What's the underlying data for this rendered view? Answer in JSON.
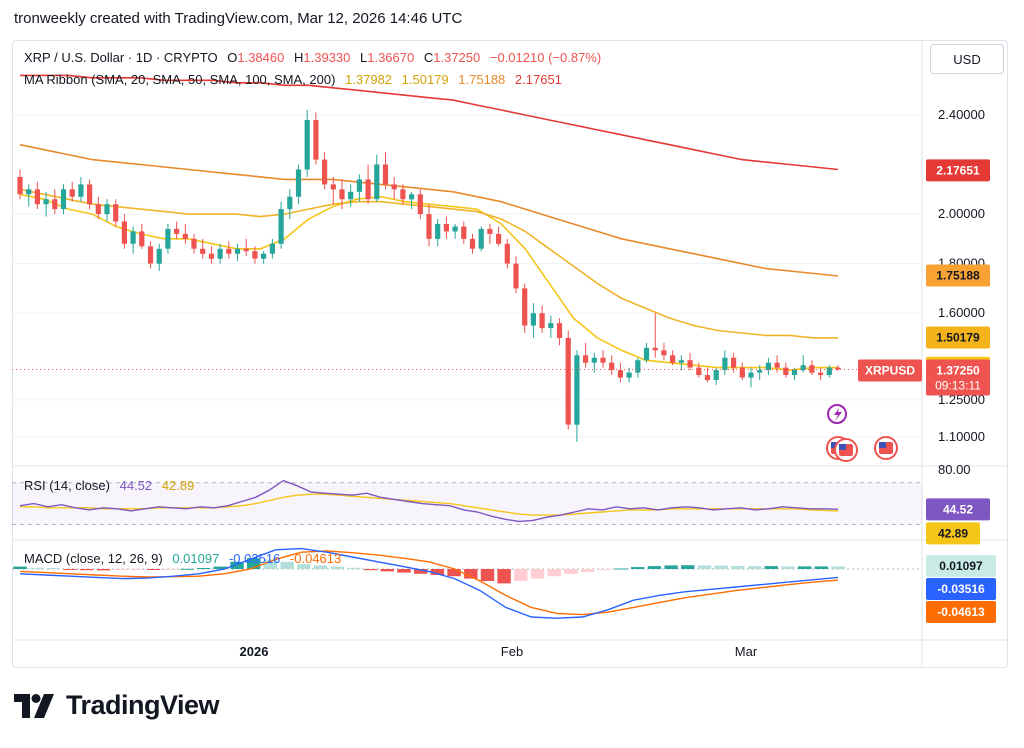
{
  "header": {
    "text": "tronweekly created with TradingView.com, Mar 12, 2026 14:46 UTC"
  },
  "currency_button": "USD",
  "legend": {
    "symbol": "XRP / U.S. Dollar · 1D · CRYPTO",
    "o_label": "O",
    "o": "1.38460",
    "h_label": "H",
    "h": "1.39330",
    "l_label": "L",
    "l": "1.36670",
    "c_label": "C",
    "c": "1.37250",
    "change": "−0.01210 (−0.87%)",
    "ma_title": "MA Ribbon (SMA, 20, SMA, 50, SMA, 100, SMA, 200)",
    "ma20": "1.37982",
    "ma50": "1.50179",
    "ma100": "1.75188",
    "ma200": "2.17651",
    "rsi_title": "RSI (14, close)",
    "rsi": "44.52",
    "rsi_ma": "42.89",
    "macd_title": "MACD (close, 12, 26, 9)",
    "macd_hist": "0.01097",
    "macd": "-0.03516",
    "macd_signal": "-0.04613"
  },
  "colors": {
    "up": "#26a69a",
    "down": "#ef5350",
    "ma20": "#f5c518",
    "ma50": "#f0b429",
    "ma100": "#e8892b",
    "ma200": "#e53935",
    "rsi": "#7e57c2",
    "rsi_ma": "#f5c518",
    "macd": "#2962ff",
    "macd_signal": "#ff6d00",
    "text": "#131722"
  },
  "price_axis": {
    "ticks": [
      "2.40000",
      "2.00000",
      "1.80000",
      "1.60000",
      "1.25000",
      "1.10000"
    ],
    "badges": {
      "ma200": "2.17651",
      "ma100": "1.75188",
      "ma50": "1.50179",
      "ma20": "1.37982",
      "symbol": "XRPUSD",
      "price": "1.37250",
      "countdown": "09:13:11"
    }
  },
  "rsi_axis": {
    "top_tick": "80.00",
    "rsi_badge": "44.52",
    "rsi_ma_badge": "42.89"
  },
  "macd_axis": {
    "hist_badge": "0.01097",
    "macd_badge": "-0.03516",
    "signal_badge": "-0.04613"
  },
  "time_axis": [
    "2026",
    "Feb",
    "Mar"
  ],
  "logo_text": "TradingView",
  "chart_data": {
    "type": "candlestick",
    "x_ticks": [
      "2026",
      "Feb",
      "Mar"
    ],
    "y_ticks": [
      2.4,
      2.0,
      1.8,
      1.6,
      1.25,
      1.1
    ],
    "ylim": [
      1.05,
      2.58
    ],
    "candles": [
      [
        2.15,
        2.18,
        2.06,
        2.08
      ],
      [
        2.08,
        2.12,
        2.03,
        2.1
      ],
      [
        2.1,
        2.13,
        2.02,
        2.04
      ],
      [
        2.04,
        2.09,
        1.99,
        2.06
      ],
      [
        2.06,
        2.1,
        2.0,
        2.02
      ],
      [
        2.02,
        2.12,
        2.0,
        2.1
      ],
      [
        2.1,
        2.13,
        2.05,
        2.07
      ],
      [
        2.07,
        2.15,
        2.05,
        2.12
      ],
      [
        2.12,
        2.14,
        2.02,
        2.04
      ],
      [
        2.04,
        2.07,
        1.98,
        2.0
      ],
      [
        2.0,
        2.06,
        1.97,
        2.04
      ],
      [
        2.04,
        2.06,
        1.95,
        1.97
      ],
      [
        1.97,
        2.0,
        1.86,
        1.88
      ],
      [
        1.88,
        1.95,
        1.84,
        1.93
      ],
      [
        1.93,
        1.96,
        1.86,
        1.87
      ],
      [
        1.87,
        1.89,
        1.78,
        1.8
      ],
      [
        1.8,
        1.88,
        1.77,
        1.86
      ],
      [
        1.86,
        1.96,
        1.84,
        1.94
      ],
      [
        1.94,
        1.97,
        1.9,
        1.92
      ],
      [
        1.92,
        1.96,
        1.88,
        1.9
      ],
      [
        1.9,
        1.92,
        1.84,
        1.86
      ],
      [
        1.86,
        1.9,
        1.82,
        1.84
      ],
      [
        1.84,
        1.87,
        1.8,
        1.82
      ],
      [
        1.82,
        1.88,
        1.8,
        1.86
      ],
      [
        1.86,
        1.89,
        1.82,
        1.84
      ],
      [
        1.84,
        1.88,
        1.81,
        1.86
      ],
      [
        1.86,
        1.9,
        1.83,
        1.85
      ],
      [
        1.85,
        1.87,
        1.8,
        1.82
      ],
      [
        1.82,
        1.85,
        1.8,
        1.84
      ],
      [
        1.84,
        1.9,
        1.82,
        1.88
      ],
      [
        1.88,
        2.05,
        1.86,
        2.02
      ],
      [
        2.02,
        2.1,
        1.98,
        2.07
      ],
      [
        2.07,
        2.2,
        2.04,
        2.18
      ],
      [
        2.18,
        2.42,
        2.15,
        2.38
      ],
      [
        2.38,
        2.41,
        2.2,
        2.22
      ],
      [
        2.22,
        2.25,
        2.1,
        2.12
      ],
      [
        2.12,
        2.15,
        2.04,
        2.1
      ],
      [
        2.1,
        2.14,
        2.02,
        2.06
      ],
      [
        2.06,
        2.12,
        2.03,
        2.09
      ],
      [
        2.09,
        2.16,
        2.05,
        2.14
      ],
      [
        2.14,
        2.2,
        2.04,
        2.06
      ],
      [
        2.06,
        2.24,
        2.05,
        2.2
      ],
      [
        2.2,
        2.25,
        2.1,
        2.12
      ],
      [
        2.12,
        2.15,
        2.06,
        2.1
      ],
      [
        2.1,
        2.12,
        2.04,
        2.06
      ],
      [
        2.06,
        2.09,
        2.02,
        2.08
      ],
      [
        2.08,
        2.1,
        1.98,
        2.0
      ],
      [
        2.0,
        2.04,
        1.87,
        1.9
      ],
      [
        1.9,
        1.98,
        1.87,
        1.96
      ],
      [
        1.96,
        1.99,
        1.9,
        1.93
      ],
      [
        1.93,
        1.96,
        1.9,
        1.95
      ],
      [
        1.95,
        1.97,
        1.88,
        1.9
      ],
      [
        1.9,
        1.92,
        1.84,
        1.86
      ],
      [
        1.86,
        1.95,
        1.85,
        1.94
      ],
      [
        1.94,
        1.96,
        1.88,
        1.92
      ],
      [
        1.92,
        1.95,
        1.87,
        1.88
      ],
      [
        1.88,
        1.9,
        1.78,
        1.8
      ],
      [
        1.8,
        1.83,
        1.68,
        1.7
      ],
      [
        1.7,
        1.72,
        1.52,
        1.55
      ],
      [
        1.55,
        1.64,
        1.5,
        1.6
      ],
      [
        1.6,
        1.63,
        1.52,
        1.54
      ],
      [
        1.54,
        1.59,
        1.5,
        1.56
      ],
      [
        1.56,
        1.58,
        1.47,
        1.5
      ],
      [
        1.5,
        1.53,
        1.13,
        1.15
      ],
      [
        1.15,
        1.45,
        1.08,
        1.43
      ],
      [
        1.43,
        1.48,
        1.38,
        1.4
      ],
      [
        1.4,
        1.44,
        1.36,
        1.42
      ],
      [
        1.42,
        1.45,
        1.38,
        1.4
      ],
      [
        1.4,
        1.43,
        1.35,
        1.37
      ],
      [
        1.37,
        1.4,
        1.32,
        1.34
      ],
      [
        1.34,
        1.38,
        1.32,
        1.36
      ],
      [
        1.36,
        1.42,
        1.34,
        1.41
      ],
      [
        1.41,
        1.48,
        1.4,
        1.46
      ],
      [
        1.46,
        1.6,
        1.42,
        1.45
      ],
      [
        1.45,
        1.48,
        1.41,
        1.43
      ],
      [
        1.43,
        1.45,
        1.39,
        1.4
      ],
      [
        1.4,
        1.43,
        1.37,
        1.41
      ],
      [
        1.41,
        1.44,
        1.37,
        1.38
      ],
      [
        1.38,
        1.4,
        1.34,
        1.35
      ],
      [
        1.35,
        1.38,
        1.32,
        1.33
      ],
      [
        1.33,
        1.38,
        1.31,
        1.37
      ],
      [
        1.37,
        1.45,
        1.35,
        1.42
      ],
      [
        1.42,
        1.44,
        1.36,
        1.38
      ],
      [
        1.38,
        1.4,
        1.33,
        1.34
      ],
      [
        1.34,
        1.38,
        1.3,
        1.36
      ],
      [
        1.36,
        1.39,
        1.33,
        1.37
      ],
      [
        1.37,
        1.42,
        1.35,
        1.4
      ],
      [
        1.4,
        1.43,
        1.36,
        1.38
      ],
      [
        1.38,
        1.4,
        1.34,
        1.35
      ],
      [
        1.35,
        1.38,
        1.33,
        1.37
      ],
      [
        1.37,
        1.43,
        1.36,
        1.39
      ],
      [
        1.39,
        1.41,
        1.35,
        1.36
      ],
      [
        1.36,
        1.38,
        1.33,
        1.35
      ],
      [
        1.35,
        1.39,
        1.34,
        1.38
      ],
      [
        1.38,
        1.39,
        1.367,
        1.3725
      ]
    ],
    "ma_lines": [
      {
        "name": "SMA 20",
        "values": [
          2.08,
          2.06,
          2.02,
          2.0,
          1.95,
          1.92,
          1.9,
          1.9,
          1.88,
          1.86,
          1.86,
          1.9,
          1.98,
          2.03,
          2.06,
          2.07,
          2.05,
          2.04,
          2.03,
          2.02,
          1.96,
          1.86,
          1.72,
          1.58,
          1.5,
          1.45,
          1.41,
          1.4,
          1.39,
          1.38,
          1.38,
          1.38,
          1.37,
          1.38,
          1.38
        ]
      },
      {
        "name": "SMA 50",
        "values": [
          2.1,
          2.08,
          2.06,
          2.04,
          2.03,
          2.02,
          2.01,
          2.0,
          2.0,
          2.0,
          1.99,
          2.0,
          2.02,
          2.04,
          2.05,
          2.05,
          2.04,
          2.03,
          2.02,
          2.01,
          1.98,
          1.93,
          1.86,
          1.79,
          1.72,
          1.66,
          1.62,
          1.58,
          1.55,
          1.53,
          1.52,
          1.51,
          1.51,
          1.5,
          1.5
        ]
      },
      {
        "name": "SMA 100",
        "values": [
          2.28,
          2.26,
          2.24,
          2.22,
          2.21,
          2.2,
          2.19,
          2.18,
          2.17,
          2.16,
          2.15,
          2.14,
          2.14,
          2.14,
          2.13,
          2.12,
          2.11,
          2.1,
          2.09,
          2.07,
          2.05,
          2.02,
          1.99,
          1.96,
          1.93,
          1.9,
          1.88,
          1.86,
          1.84,
          1.82,
          1.8,
          1.78,
          1.77,
          1.76,
          1.75
        ]
      },
      {
        "name": "SMA 200",
        "values": [
          2.56,
          2.56,
          2.56,
          2.55,
          2.55,
          2.55,
          2.54,
          2.54,
          2.54,
          2.53,
          2.53,
          2.52,
          2.52,
          2.51,
          2.5,
          2.49,
          2.48,
          2.47,
          2.46,
          2.44,
          2.42,
          2.4,
          2.38,
          2.36,
          2.34,
          2.32,
          2.3,
          2.28,
          2.26,
          2.24,
          2.22,
          2.21,
          2.2,
          2.19,
          2.18
        ]
      }
    ],
    "rsi": {
      "values": [
        48,
        50,
        47,
        49,
        46,
        44,
        46,
        45,
        43,
        45,
        47,
        46,
        45,
        47,
        46,
        48,
        52,
        56,
        63,
        72,
        67,
        61,
        60,
        59,
        58,
        60,
        56,
        54,
        52,
        50,
        49,
        48,
        44,
        42,
        38,
        35,
        33,
        34,
        37,
        39,
        42,
        45,
        44,
        47,
        45,
        46,
        44,
        46,
        47,
        46,
        44,
        45,
        46,
        44,
        45,
        47,
        46,
        45,
        45,
        44.52
      ],
      "ma": [
        47,
        47,
        46,
        46,
        46,
        46,
        45,
        45,
        45,
        45,
        46,
        46,
        46,
        46,
        46,
        47,
        48,
        50,
        53,
        56,
        58,
        59,
        59,
        58,
        57,
        56,
        55,
        54,
        53,
        52,
        51,
        50,
        48,
        46,
        44,
        42,
        40,
        39,
        39,
        39,
        40,
        41,
        42,
        43,
        44,
        44,
        44,
        45,
        45,
        45,
        45,
        45,
        45,
        45,
        45,
        45,
        45,
        44,
        43.5,
        42.89
      ]
    },
    "macd": {
      "hist": [
        0.01,
        0.005,
        0.004,
        -0.003,
        -0.005,
        -0.006,
        -0.004,
        -0.003,
        -0.004,
        -0.002,
        0.001,
        0.004,
        0.01,
        0.03,
        0.045,
        0.04,
        0.03,
        0.02,
        0.015,
        0.01,
        0.005,
        -0.005,
        -0.01,
        -0.015,
        -0.02,
        -0.025,
        -0.03,
        -0.04,
        -0.05,
        -0.06,
        -0.05,
        -0.04,
        -0.03,
        -0.02,
        -0.012,
        -0.005,
        0.002,
        0.008,
        0.012,
        0.015,
        0.016,
        0.015,
        0.014,
        0.013,
        0.012,
        0.012,
        0.011,
        0.011,
        0.011,
        0.01097
      ],
      "macd": [
        -0.02,
        -0.025,
        -0.03,
        -0.035,
        -0.04,
        -0.038,
        -0.03,
        -0.02,
        0.0,
        0.04,
        0.08,
        0.085,
        0.07,
        0.05,
        0.03,
        0.01,
        -0.01,
        -0.04,
        -0.09,
        -0.16,
        -0.2,
        -0.205,
        -0.2,
        -0.17,
        -0.13,
        -0.11,
        -0.095,
        -0.085,
        -0.075,
        -0.065,
        -0.055,
        -0.045,
        -0.035162
      ],
      "signal": [
        -0.01,
        -0.015,
        -0.02,
        -0.025,
        -0.03,
        -0.033,
        -0.032,
        -0.03,
        -0.02,
        0.0,
        0.04,
        0.07,
        0.075,
        0.068,
        0.058,
        0.045,
        0.03,
        0.0,
        -0.05,
        -0.11,
        -0.16,
        -0.185,
        -0.19,
        -0.18,
        -0.16,
        -0.14,
        -0.12,
        -0.105,
        -0.09,
        -0.078,
        -0.066,
        -0.055,
        -0.04613
      ]
    }
  }
}
